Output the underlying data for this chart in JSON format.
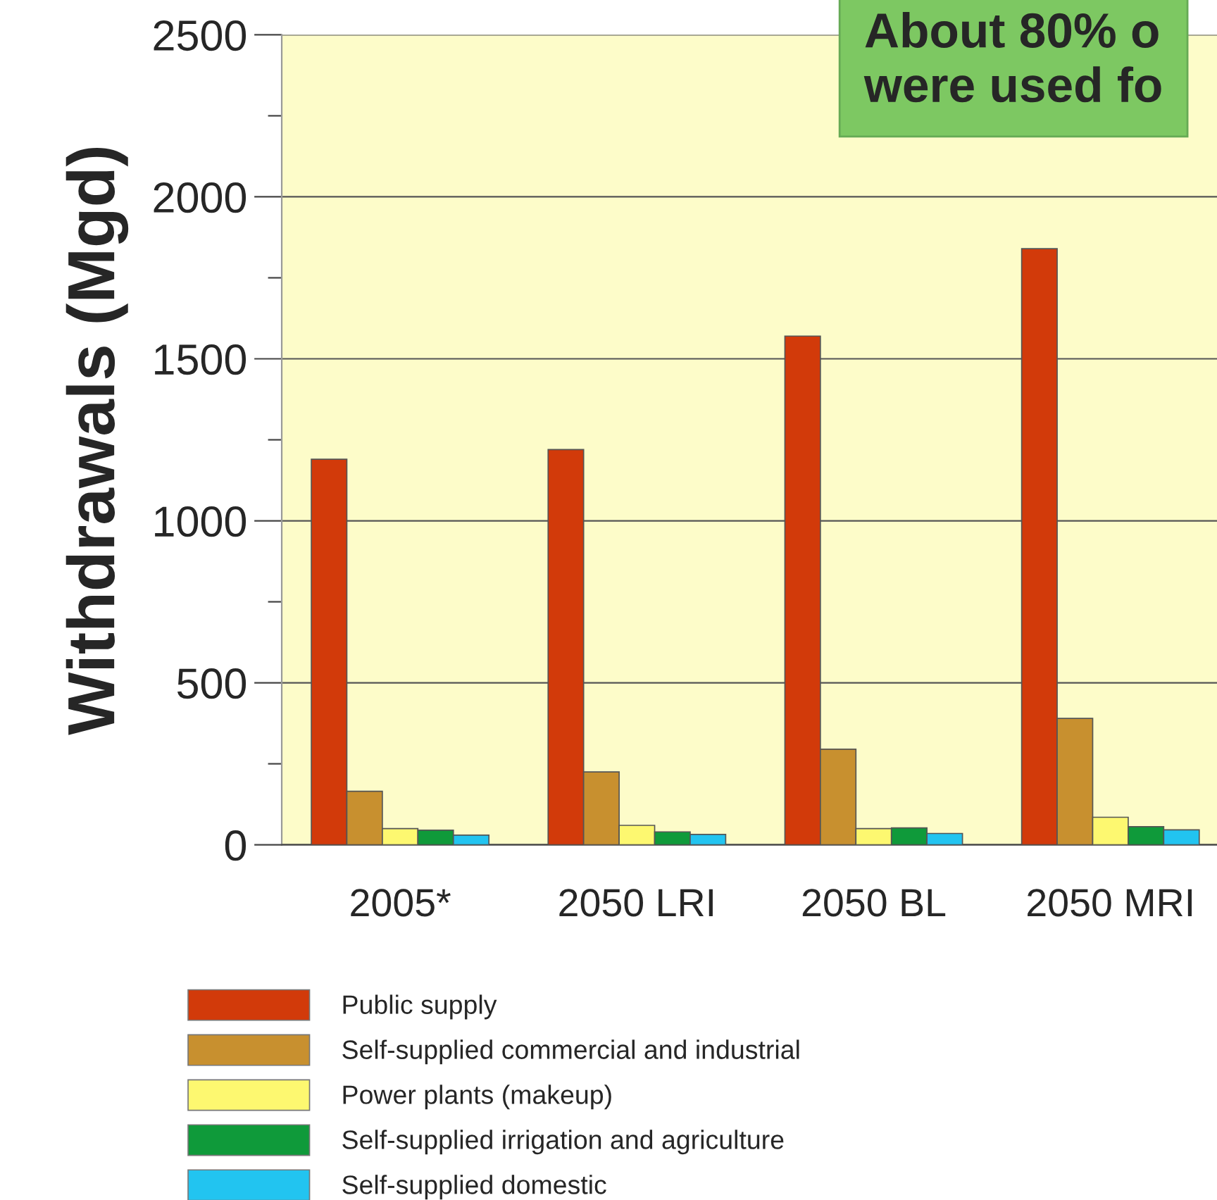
{
  "chart_data": {
    "type": "bar",
    "ylabel": "Withdrawals (Mgd)",
    "categories": [
      "2005*",
      "2050 LRI",
      "2050 BL",
      "2050 MRI"
    ],
    "series": [
      {
        "name": "Public supply",
        "color": "#d23a0a",
        "values": [
          1190,
          1220,
          1570,
          1840
        ]
      },
      {
        "name": "Self-supplied commercial and industrial",
        "color": "#c8902f",
        "values": [
          165,
          225,
          295,
          390
        ]
      },
      {
        "name": "Power plants (makeup)",
        "color": "#fdf870",
        "values": [
          50,
          60,
          50,
          85
        ]
      },
      {
        "name": "Self-supplied irrigation and agriculture",
        "color": "#0f9a3a",
        "values": [
          45,
          40,
          52,
          56
        ]
      },
      {
        "name": "Self-supplied domestic",
        "color": "#22c4f0",
        "values": [
          30,
          32,
          35,
          46
        ]
      }
    ],
    "ylim": [
      0,
      2500
    ],
    "yticks": [
      0,
      {
        "value": 250,
        "label": null
      },
      500,
      {
        "value": 750,
        "label": null
      },
      1000,
      {
        "value": 1250,
        "label": null
      },
      1500,
      {
        "value": 1750,
        "label": null
      },
      2000,
      {
        "value": 2250,
        "label": null
      },
      2500
    ],
    "grid": "y",
    "legend": "bottom left",
    "annotations": [
      "About 80% o\nwere used fo"
    ]
  }
}
